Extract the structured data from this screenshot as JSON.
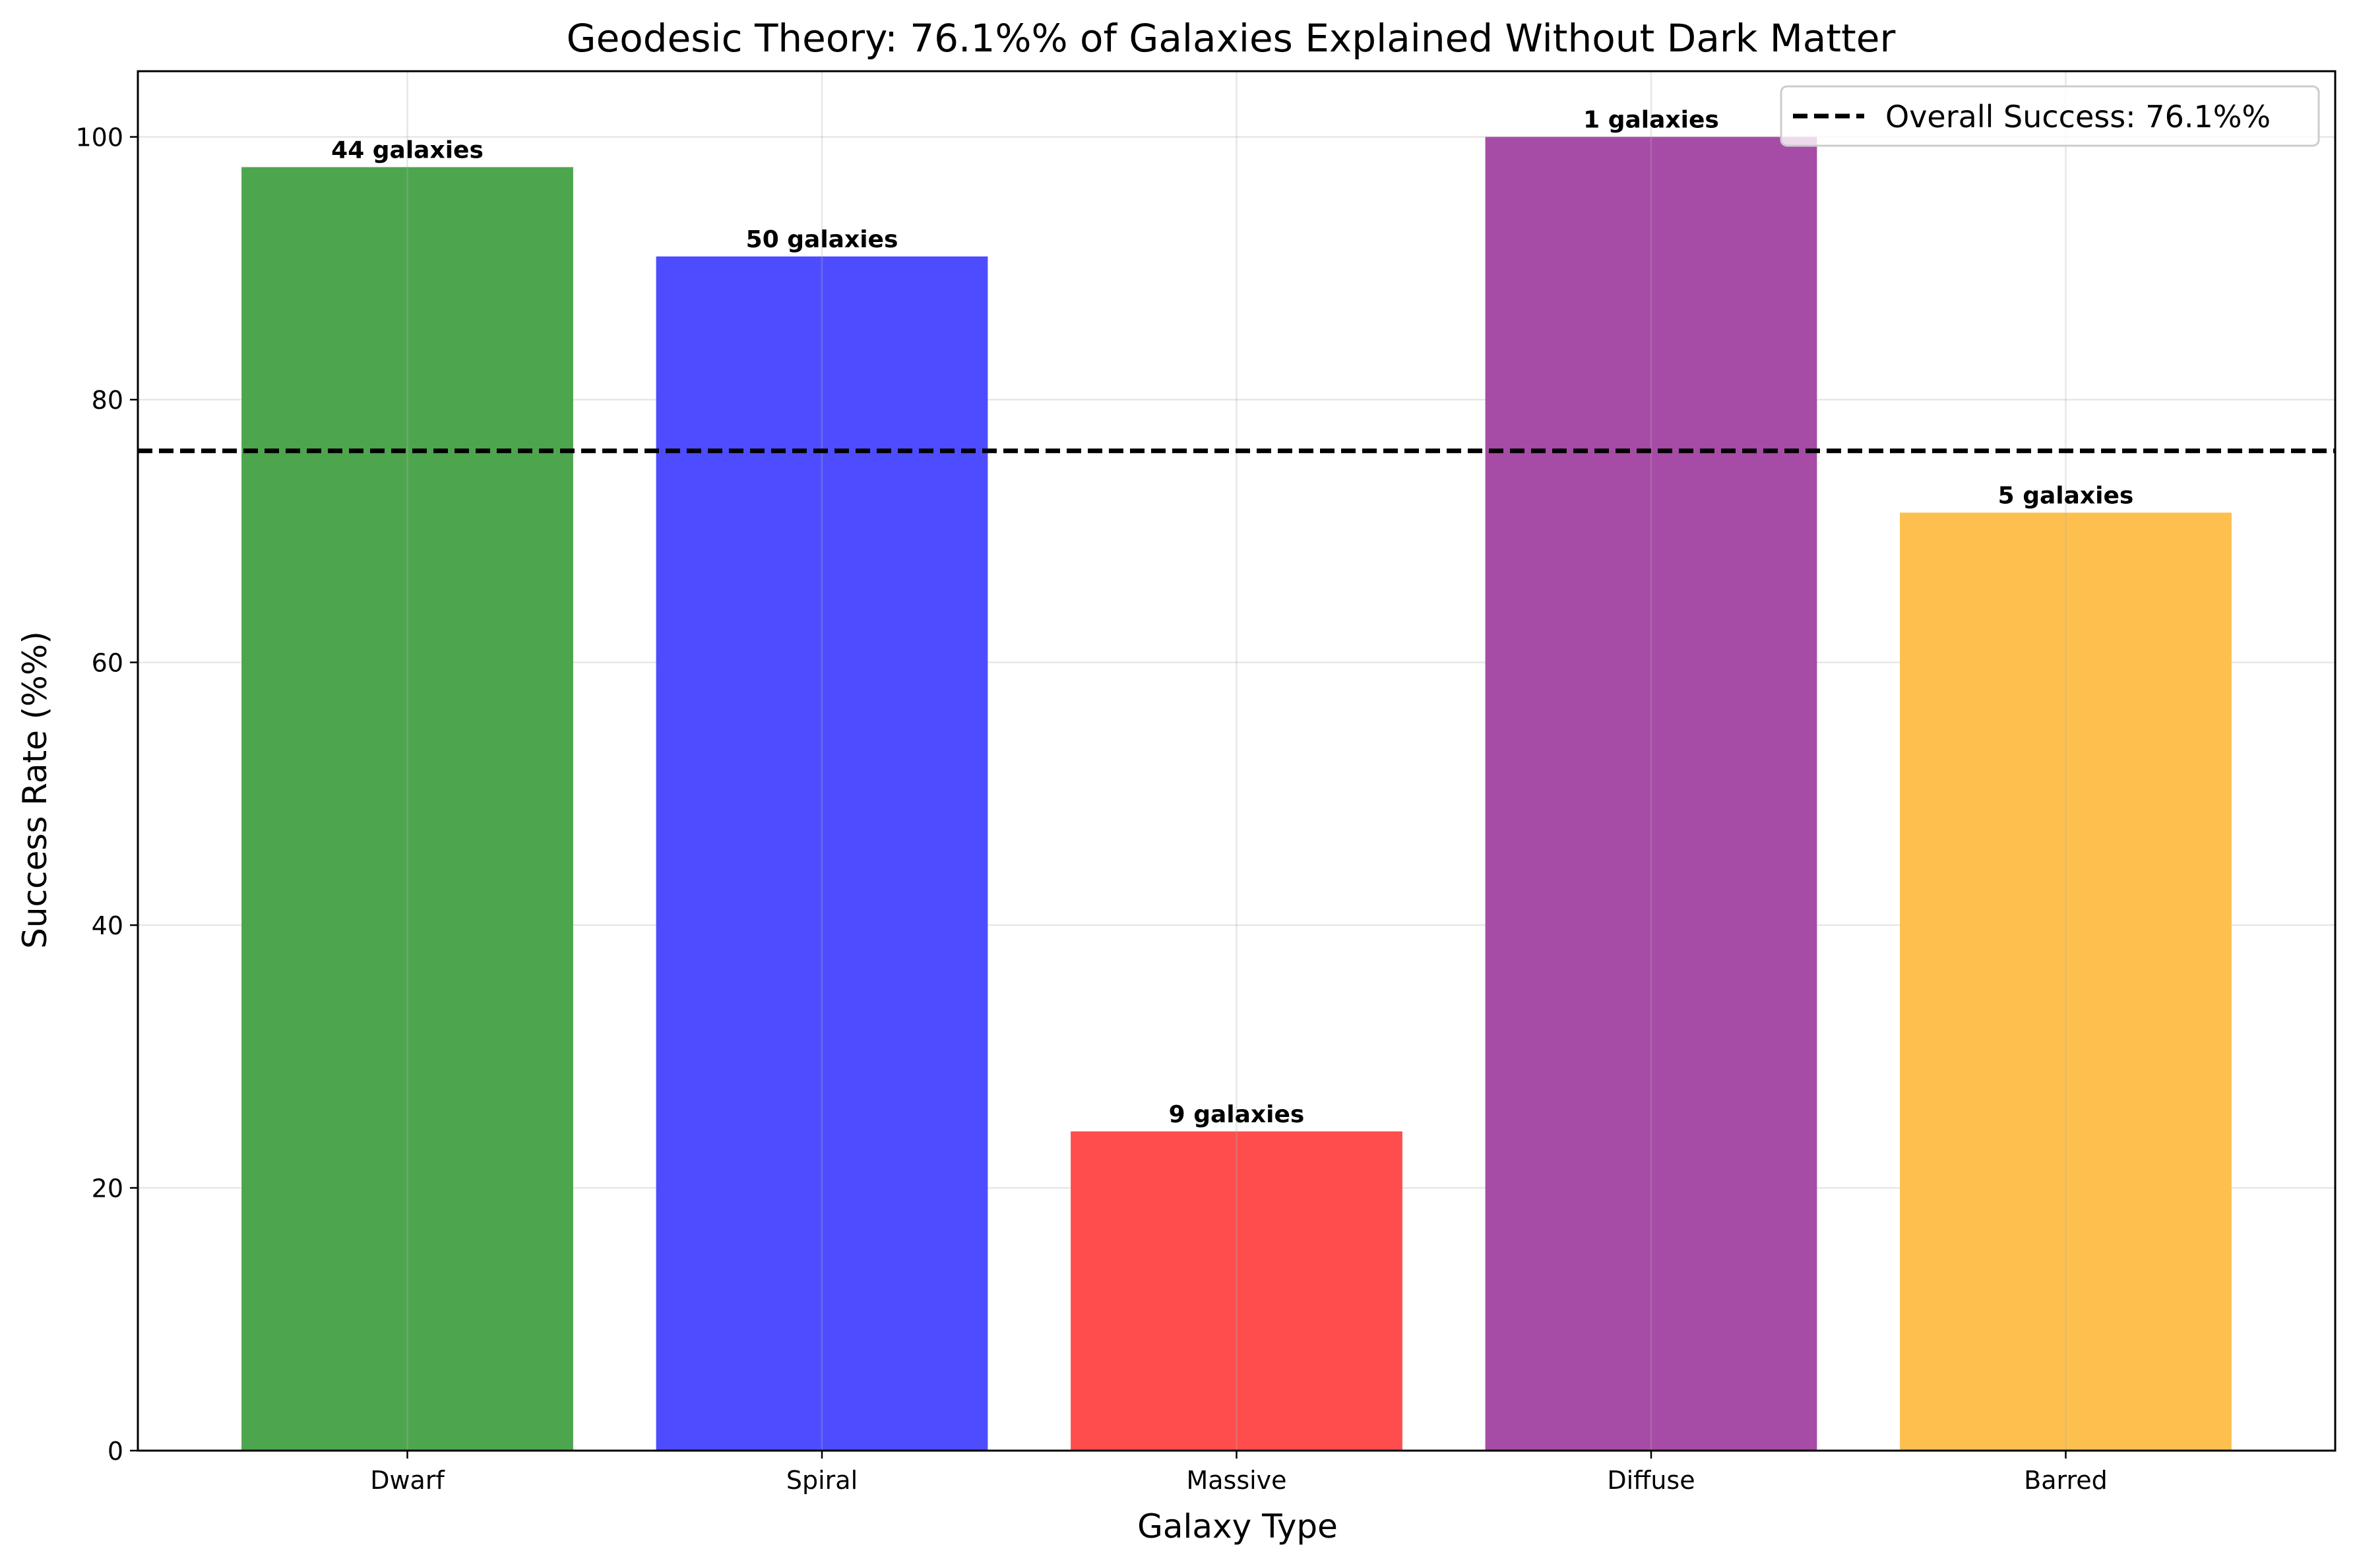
{
  "chart_data": {
    "type": "bar",
    "title": "Geodesic Theory: 76.1%% of Galaxies Explained Without Dark Matter",
    "xlabel": "Galaxy Type",
    "ylabel": "Success Rate (%%)",
    "categories": [
      "Dwarf",
      "Spiral",
      "Massive",
      "Diffuse",
      "Barred"
    ],
    "values": [
      97.7,
      90.9,
      24.3,
      100.0,
      71.4
    ],
    "bar_labels": [
      "44 galaxies",
      "50 galaxies",
      "9 galaxies",
      "1 galaxies",
      "5 galaxies"
    ],
    "colors": [
      "#4da64d",
      "#4d4dff",
      "#ff4d4d",
      "#a64ca6",
      "#fdc04e"
    ],
    "ylim": [
      0,
      105
    ],
    "yticks": [
      0,
      20,
      40,
      60,
      80,
      100
    ],
    "grid": true,
    "reference_line": {
      "value": 76.1,
      "style": "dashed",
      "color": "#000000",
      "label": "Overall Success: 76.1%%"
    },
    "legend_position": "top-right"
  }
}
